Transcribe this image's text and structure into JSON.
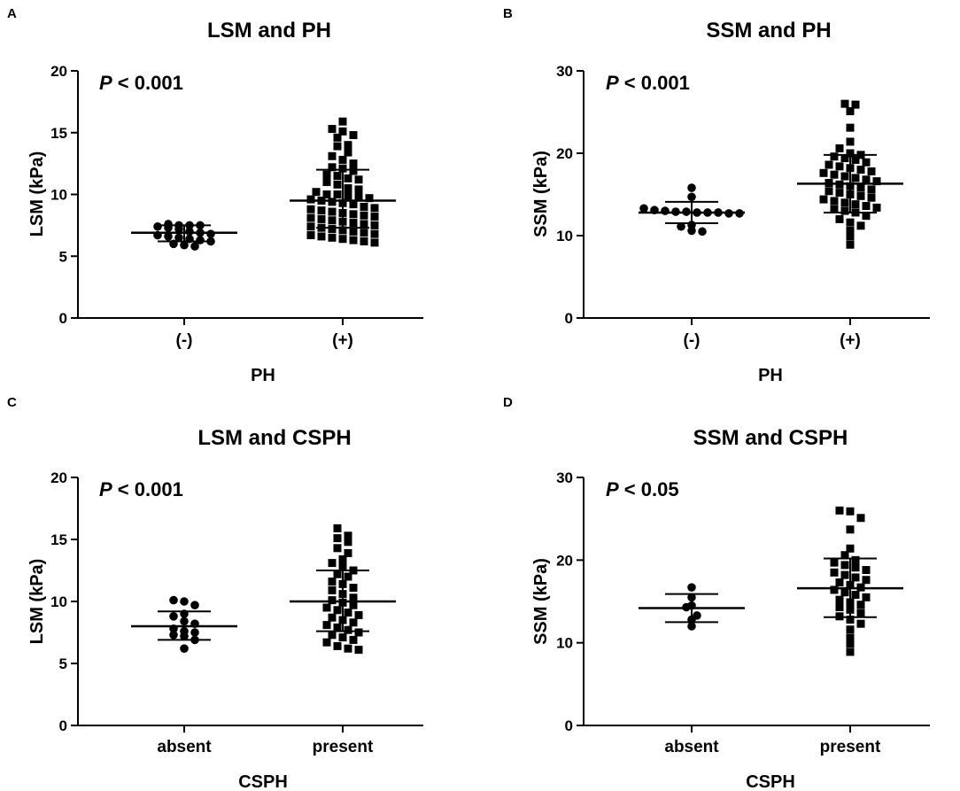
{
  "chart_data": [
    {
      "type": "scatter",
      "panel_letter": "A",
      "title": "LSM and PH",
      "p_value": {
        "symbol": "P",
        "text": " < 0.001"
      },
      "ylabel": "LSM (kPa)",
      "xlabel": "PH",
      "ylim": [
        0,
        20
      ],
      "yticks": [
        0,
        5,
        10,
        15,
        20
      ],
      "categories": [
        "(-)",
        "(+)"
      ],
      "groups": [
        {
          "category": "(-)",
          "marker": "circle",
          "mean": 6.9,
          "sd_low": 6.2,
          "sd_high": 7.5,
          "values": [
            7.6,
            7.5,
            7.5,
            7.5,
            7.4,
            7.3,
            7.2,
            7.0,
            6.9,
            6.8,
            6.7,
            6.6,
            6.5,
            6.4,
            6.3,
            6.2,
            6.0,
            5.9,
            5.8
          ]
        },
        {
          "category": "(+)",
          "marker": "square",
          "mean": 9.5,
          "sd_low": 7.3,
          "sd_high": 12.0,
          "values": [
            15.9,
            15.3,
            15.1,
            14.8,
            14.6,
            14.0,
            13.9,
            13.4,
            13.1,
            12.8,
            12.5,
            12.2,
            12.1,
            11.9,
            11.6,
            11.5,
            11.3,
            11.2,
            11.0,
            10.8,
            10.5,
            10.4,
            10.2,
            10.0,
            10.0,
            9.9,
            9.8,
            9.7,
            9.6,
            9.5,
            9.4,
            9.3,
            9.2,
            9.0,
            8.9,
            8.8,
            8.7,
            8.6,
            8.5,
            8.4,
            8.3,
            8.2,
            8.1,
            8.0,
            7.9,
            7.8,
            7.7,
            7.6,
            7.5,
            7.4,
            7.3,
            7.2,
            7.1,
            7.0,
            6.9,
            6.8,
            6.7,
            6.6,
            6.5,
            6.4,
            6.3,
            6.2,
            6.1
          ]
        }
      ]
    },
    {
      "type": "scatter",
      "panel_letter": "B",
      "title": "SSM and PH",
      "p_value": {
        "symbol": "P",
        "text": " < 0.001"
      },
      "ylabel": "SSM (kPa)",
      "xlabel": "PH",
      "ylim": [
        0,
        30
      ],
      "yticks": [
        0,
        10,
        20,
        30
      ],
      "categories": [
        "(-)",
        "(+)"
      ],
      "groups": [
        {
          "category": "(-)",
          "marker": "circle",
          "mean": 12.8,
          "sd_low": 11.5,
          "sd_high": 14.1,
          "values": [
            15.8,
            14.7,
            13.3,
            13.1,
            13.0,
            12.9,
            12.9,
            12.8,
            12.8,
            12.8,
            12.7,
            12.7,
            11.3,
            11.1,
            10.6,
            10.5
          ]
        },
        {
          "category": "(+)",
          "marker": "square",
          "mean": 16.3,
          "sd_low": 12.8,
          "sd_high": 19.8,
          "values": [
            26.0,
            25.9,
            25.1,
            23.1,
            21.4,
            20.6,
            20.0,
            19.8,
            19.6,
            19.4,
            19.2,
            18.9,
            18.6,
            18.4,
            18.2,
            18.0,
            17.8,
            17.6,
            17.4,
            17.2,
            17.0,
            16.8,
            16.6,
            16.4,
            16.2,
            16.0,
            15.8,
            15.6,
            15.4,
            15.2,
            15.0,
            14.8,
            14.6,
            14.4,
            14.2,
            14.0,
            13.8,
            13.6,
            13.4,
            13.2,
            13.0,
            12.8,
            12.4,
            12.0,
            11.6,
            11.2,
            10.6,
            9.9,
            8.9
          ]
        }
      ]
    },
    {
      "type": "scatter",
      "panel_letter": "C",
      "title": "LSM and CSPH",
      "p_value": {
        "symbol": "P",
        "text": " < 0.001"
      },
      "ylabel": "LSM (kPa)",
      "xlabel": "CSPH",
      "ylim": [
        0,
        20
      ],
      "yticks": [
        0,
        5,
        10,
        15,
        20
      ],
      "categories": [
        "absent",
        "present"
      ],
      "groups": [
        {
          "category": "absent",
          "marker": "circle",
          "mean": 8.0,
          "sd_low": 6.9,
          "sd_high": 9.2,
          "values": [
            10.1,
            10.0,
            9.7,
            9.0,
            8.8,
            8.4,
            8.2,
            7.8,
            7.6,
            7.5,
            7.3,
            7.2,
            6.9,
            6.2
          ]
        },
        {
          "category": "present",
          "marker": "square",
          "mean": 10.0,
          "sd_low": 7.6,
          "sd_high": 12.5,
          "values": [
            15.9,
            15.3,
            15.1,
            14.8,
            14.3,
            13.9,
            13.4,
            13.1,
            12.8,
            12.5,
            12.2,
            12.0,
            11.6,
            11.4,
            11.1,
            10.9,
            10.6,
            10.3,
            10.1,
            9.9,
            9.7,
            9.5,
            9.3,
            9.1,
            8.9,
            8.7,
            8.5,
            8.3,
            8.1,
            7.9,
            7.7,
            7.5,
            7.3,
            7.1,
            6.9,
            6.7,
            6.4,
            6.2,
            6.1
          ]
        }
      ]
    },
    {
      "type": "scatter",
      "panel_letter": "D",
      "title": "SSM and CSPH",
      "p_value": {
        "symbol": "P",
        "text": " < 0.05"
      },
      "ylabel": "SSM (kPa)",
      "xlabel": "CSPH",
      "ylim": [
        0,
        30
      ],
      "yticks": [
        0,
        10,
        20,
        30
      ],
      "categories": [
        "absent",
        "present"
      ],
      "groups": [
        {
          "category": "absent",
          "marker": "circle",
          "mean": 14.2,
          "sd_low": 12.5,
          "sd_high": 15.9,
          "values": [
            16.7,
            15.5,
            14.5,
            14.3,
            13.3,
            12.8,
            12.0
          ]
        },
        {
          "category": "present",
          "marker": "square",
          "mean": 16.6,
          "sd_low": 13.1,
          "sd_high": 20.2,
          "values": [
            26.0,
            25.9,
            25.1,
            23.7,
            21.4,
            20.6,
            20.0,
            19.7,
            19.4,
            19.1,
            18.8,
            18.5,
            18.2,
            17.9,
            17.6,
            17.3,
            17.0,
            16.7,
            16.4,
            16.1,
            15.8,
            15.5,
            15.2,
            14.9,
            14.6,
            14.3,
            14.0,
            13.6,
            13.2,
            12.8,
            12.3,
            11.6,
            10.6,
            9.9,
            8.9
          ]
        }
      ]
    }
  ]
}
